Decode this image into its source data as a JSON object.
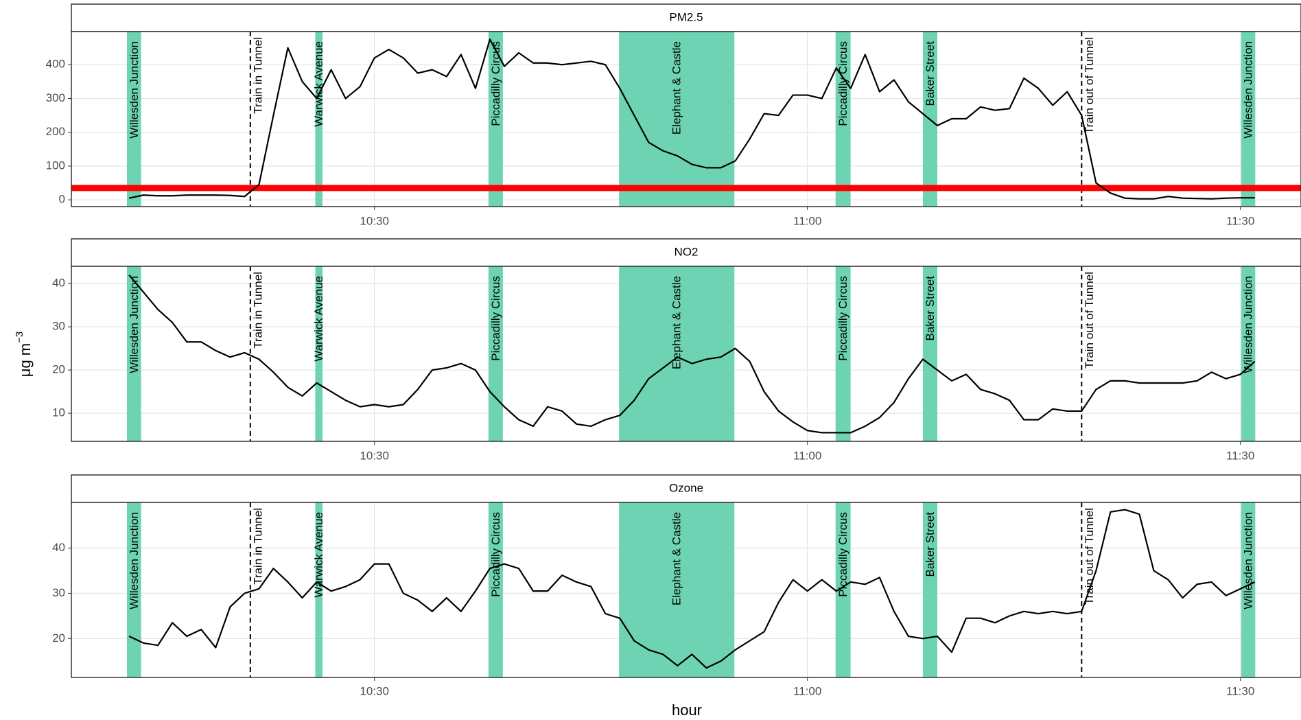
{
  "chart_data": [
    {
      "type": "line",
      "title": "PM2.5",
      "color": "#000000",
      "x": [
        13,
        14,
        15,
        16,
        17,
        18,
        19,
        20,
        21,
        22,
        23,
        24,
        25,
        26,
        27,
        28,
        29,
        30,
        31,
        32,
        33,
        34,
        35,
        36,
        37,
        38,
        39,
        40,
        41,
        42,
        43,
        44,
        45,
        46,
        47,
        48,
        49,
        50,
        51,
        52,
        53,
        54,
        55,
        56,
        57,
        58,
        59,
        60,
        61,
        62,
        63,
        64,
        65,
        66,
        67,
        68,
        69,
        70,
        71,
        72,
        73,
        74,
        75,
        76,
        77,
        78,
        79,
        80,
        81,
        82,
        83,
        84,
        85,
        86,
        87,
        88,
        89,
        90,
        91
      ],
      "values": [
        5,
        14,
        12,
        12,
        14,
        14,
        14,
        13,
        10,
        45,
        250,
        450,
        350,
        300,
        385,
        300,
        335,
        420,
        445,
        420,
        375,
        385,
        365,
        430,
        330,
        475,
        395,
        435,
        405,
        405,
        400,
        405,
        410,
        400,
        330,
        250,
        170,
        145,
        130,
        105,
        95,
        95,
        115,
        180,
        255,
        250,
        310,
        310,
        300,
        390,
        330,
        430,
        320,
        355,
        290,
        255,
        220,
        240,
        240,
        275,
        265,
        270,
        360,
        330,
        280,
        320,
        250,
        50,
        20,
        5,
        3,
        3,
        10,
        5,
        4,
        3,
        5,
        6,
        6
      ],
      "xlim": [
        9,
        94.2
      ],
      "xticks": [
        {
          "value": 30,
          "label": "10:30"
        },
        {
          "value": 60,
          "label": "11:00"
        },
        {
          "value": 90,
          "label": "11:30"
        }
      ],
      "ylim": [
        -20,
        498
      ],
      "yticks": [
        0,
        100,
        200,
        300,
        400
      ],
      "grid": true,
      "hline": 35,
      "hline_color": "#ff0000"
    },
    {
      "type": "line",
      "title": "NO2",
      "color": "#000000",
      "x": [
        13,
        14,
        15,
        16,
        17,
        18,
        19,
        20,
        21,
        22,
        23,
        24,
        25,
        26,
        27,
        28,
        29,
        30,
        31,
        32,
        33,
        34,
        35,
        36,
        37,
        38,
        39,
        40,
        41,
        42,
        43,
        44,
        45,
        46,
        47,
        48,
        49,
        50,
        51,
        52,
        53,
        54,
        55,
        56,
        57,
        58,
        59,
        60,
        61,
        62,
        63,
        64,
        65,
        66,
        67,
        68,
        69,
        70,
        71,
        72,
        73,
        74,
        75,
        76,
        77,
        78,
        79,
        80,
        81,
        82,
        83,
        84,
        85,
        86,
        87,
        88,
        89,
        90,
        91
      ],
      "values": [
        42,
        38,
        34,
        31,
        26.5,
        26.5,
        24.5,
        23,
        24,
        22.5,
        19.5,
        16,
        14,
        17,
        15,
        13,
        11.5,
        12,
        11.5,
        12,
        15.5,
        20,
        20.5,
        21.5,
        20,
        15,
        11.5,
        8.5,
        7,
        11.5,
        10.5,
        7.5,
        7,
        8.5,
        9.5,
        13,
        18,
        20.5,
        23,
        21.5,
        22.5,
        23,
        25,
        22,
        15,
        10.5,
        8,
        6,
        5.5,
        5.5,
        5.5,
        7,
        9,
        12.5,
        18,
        22.5,
        20,
        17.5,
        19,
        15.5,
        14.5,
        13,
        8.5,
        8.5,
        11,
        10.5,
        10.5,
        15.5,
        17.5,
        17.5,
        17,
        17,
        17,
        17,
        17.5,
        19.5,
        18,
        19,
        22
      ],
      "xlim": [
        9,
        94.2
      ],
      "xticks": [
        {
          "value": 30,
          "label": "10:30"
        },
        {
          "value": 60,
          "label": "11:00"
        },
        {
          "value": 90,
          "label": "11:30"
        }
      ],
      "ylim": [
        3.5,
        44
      ],
      "yticks": [
        10,
        20,
        30,
        40
      ],
      "grid": true
    },
    {
      "type": "line",
      "title": "Ozone",
      "color": "#000000",
      "x": [
        13,
        14,
        15,
        16,
        17,
        18,
        19,
        20,
        21,
        22,
        23,
        24,
        25,
        26,
        27,
        28,
        29,
        30,
        31,
        32,
        33,
        34,
        35,
        36,
        37,
        38,
        39,
        40,
        41,
        42,
        43,
        44,
        45,
        46,
        47,
        48,
        49,
        50,
        51,
        52,
        53,
        54,
        55,
        56,
        57,
        58,
        59,
        60,
        61,
        62,
        63,
        64,
        65,
        66,
        67,
        68,
        69,
        70,
        71,
        72,
        73,
        74,
        75,
        76,
        77,
        78,
        79,
        80,
        81,
        82,
        83,
        84,
        85,
        86,
        87,
        88,
        89,
        90,
        91
      ],
      "values": [
        20.5,
        19,
        18.5,
        23.5,
        20.5,
        22,
        18,
        27,
        30,
        31,
        35.5,
        32.5,
        29,
        32.5,
        30.5,
        31.5,
        33,
        36.5,
        36.5,
        30,
        28.5,
        26,
        29,
        26,
        30.5,
        35.5,
        36.5,
        35.5,
        30.5,
        30.5,
        34,
        32.5,
        31.5,
        25.5,
        24.5,
        19.5,
        17.5,
        16.5,
        14,
        16.5,
        13.5,
        15,
        17.5,
        19.5,
        21.5,
        28,
        33,
        30.5,
        33,
        30.5,
        32.5,
        32,
        33.5,
        26,
        20.5,
        20,
        20.5,
        17,
        24.5,
        24.5,
        23.5,
        25,
        26,
        25.5,
        26,
        25.5,
        26,
        35,
        48,
        48.5,
        47.5,
        35,
        33,
        29,
        32,
        32.5,
        29.5,
        31,
        32.5
      ],
      "xlim": [
        9,
        94.2
      ],
      "xticks": [
        {
          "value": 30,
          "label": "10:30"
        },
        {
          "value": 60,
          "label": "11:00"
        },
        {
          "value": 90,
          "label": "11:30"
        }
      ],
      "ylim": [
        11.4,
        50.1
      ],
      "yticks": [
        20,
        30,
        40
      ],
      "grid": true
    }
  ],
  "bands": [
    {
      "label": "Willesden Junction",
      "start": 12.85,
      "end": 13.83
    },
    {
      "label": "Warwick Avenue",
      "start": 25.9,
      "end": 26.4
    },
    {
      "label": "Piccadilly Circus",
      "start": 37.9,
      "end": 38.9
    },
    {
      "label": "Elephant & Castle",
      "start": 46.95,
      "end": 54.94
    },
    {
      "label": "Piccadilly Circus",
      "start": 61.95,
      "end": 62.99
    },
    {
      "label": "Baker Street",
      "start": 68,
      "end": 69
    },
    {
      "label": "Willesden Junction",
      "start": 90.06,
      "end": 91.03
    }
  ],
  "band_color": "#6dd3b2",
  "vlines": [
    {
      "label": "Train in Tunnel",
      "x": 21.4
    },
    {
      "label": "Train out of Tunnel",
      "x": 79
    }
  ],
  "xlabel": "hour",
  "ylabel": {
    "text": "μg m",
    "sup": "−3"
  }
}
